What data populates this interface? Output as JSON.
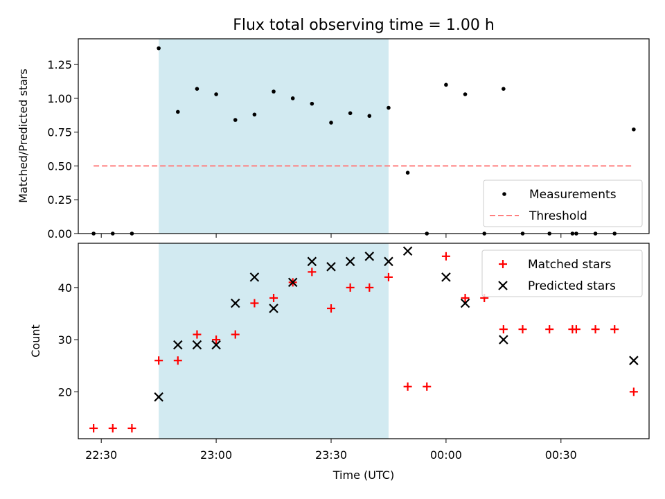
{
  "chart_data": {
    "type": "scatter",
    "title": "Flux total observing time = 1.00 h",
    "xlabel": "Time (UTC)",
    "x_axis_kind": "time",
    "x_range": [
      "22:24",
      "00:53"
    ],
    "x_ticks": [
      "22:30",
      "23:00",
      "23:30",
      "00:00",
      "00:30"
    ],
    "shaded_interval": {
      "start": "22:45",
      "end": "23:45",
      "color": "#add8e6"
    },
    "grid": false,
    "panels": [
      {
        "id": "ratio",
        "ylabel": "Matched/Predicted stars",
        "ylim": [
          0,
          1.44
        ],
        "y_ticks": [
          "0.00",
          "0.25",
          "0.50",
          "0.75",
          "1.00",
          "1.25"
        ],
        "legend_position": "lower right",
        "series": [
          {
            "name": "Measurements",
            "marker": "dot",
            "color": "#000000",
            "points": [
              {
                "x": "22:28",
                "y": 0
              },
              {
                "x": "22:33",
                "y": 0
              },
              {
                "x": "22:38",
                "y": 0
              },
              {
                "x": "22:45",
                "y": 1.37
              },
              {
                "x": "22:50",
                "y": 0.9
              },
              {
                "x": "22:55",
                "y": 1.07
              },
              {
                "x": "23:00",
                "y": 1.03
              },
              {
                "x": "23:05",
                "y": 0.84
              },
              {
                "x": "23:10",
                "y": 0.88
              },
              {
                "x": "23:15",
                "y": 1.05
              },
              {
                "x": "23:20",
                "y": 1.0
              },
              {
                "x": "23:25",
                "y": 0.96
              },
              {
                "x": "23:30",
                "y": 0.82
              },
              {
                "x": "23:35",
                "y": 0.89
              },
              {
                "x": "23:40",
                "y": 0.87
              },
              {
                "x": "23:45",
                "y": 0.93
              },
              {
                "x": "23:50",
                "y": 0.45
              },
              {
                "x": "23:55",
                "y": 0
              },
              {
                "x": "00:00",
                "y": 1.1
              },
              {
                "x": "00:05",
                "y": 1.03
              },
              {
                "x": "00:10",
                "y": 0
              },
              {
                "x": "00:15",
                "y": 1.07
              },
              {
                "x": "00:20",
                "y": 0
              },
              {
                "x": "00:27",
                "y": 0
              },
              {
                "x": "00:33",
                "y": 0
              },
              {
                "x": "00:34",
                "y": 0
              },
              {
                "x": "00:39",
                "y": 0
              },
              {
                "x": "00:44",
                "y": 0
              },
              {
                "x": "00:49",
                "y": 0.77
              }
            ]
          },
          {
            "name": "Threshold",
            "marker": "dashed-line",
            "color": "#ff7f7f",
            "points": [
              {
                "x": "22:28",
                "y": 0.5
              },
              {
                "x": "00:49",
                "y": 0.5
              }
            ]
          }
        ]
      },
      {
        "id": "counts",
        "ylabel": "Count",
        "ylim": [
          11,
          48.5
        ],
        "y_ticks": [
          "20",
          "30",
          "40"
        ],
        "legend_position": "upper right",
        "series": [
          {
            "name": "Matched stars",
            "marker": "plus",
            "color": "#ff0000",
            "points": [
              {
                "x": "22:28",
                "y": 13
              },
              {
                "x": "22:33",
                "y": 13
              },
              {
                "x": "22:38",
                "y": 13
              },
              {
                "x": "22:45",
                "y": 26
              },
              {
                "x": "22:50",
                "y": 26
              },
              {
                "x": "22:55",
                "y": 31
              },
              {
                "x": "23:00",
                "y": 30
              },
              {
                "x": "23:05",
                "y": 31
              },
              {
                "x": "23:10",
                "y": 37
              },
              {
                "x": "23:15",
                "y": 38
              },
              {
                "x": "23:20",
                "y": 41
              },
              {
                "x": "23:25",
                "y": 43
              },
              {
                "x": "23:30",
                "y": 36
              },
              {
                "x": "23:35",
                "y": 40
              },
              {
                "x": "23:40",
                "y": 40
              },
              {
                "x": "23:45",
                "y": 42
              },
              {
                "x": "23:50",
                "y": 21
              },
              {
                "x": "23:55",
                "y": 21
              },
              {
                "x": "00:00",
                "y": 46
              },
              {
                "x": "00:05",
                "y": 38
              },
              {
                "x": "00:10",
                "y": 38
              },
              {
                "x": "00:15",
                "y": 32
              },
              {
                "x": "00:20",
                "y": 32
              },
              {
                "x": "00:27",
                "y": 32
              },
              {
                "x": "00:33",
                "y": 32
              },
              {
                "x": "00:34",
                "y": 32
              },
              {
                "x": "00:39",
                "y": 32
              },
              {
                "x": "00:44",
                "y": 32
              },
              {
                "x": "00:49",
                "y": 20
              }
            ]
          },
          {
            "name": "Predicted stars",
            "marker": "x",
            "color": "#000000",
            "points": [
              {
                "x": "22:45",
                "y": 19
              },
              {
                "x": "22:50",
                "y": 29
              },
              {
                "x": "22:55",
                "y": 29
              },
              {
                "x": "23:00",
                "y": 29
              },
              {
                "x": "23:05",
                "y": 37
              },
              {
                "x": "23:10",
                "y": 42
              },
              {
                "x": "23:15",
                "y": 36
              },
              {
                "x": "23:20",
                "y": 41
              },
              {
                "x": "23:25",
                "y": 45
              },
              {
                "x": "23:30",
                "y": 44
              },
              {
                "x": "23:35",
                "y": 45
              },
              {
                "x": "23:40",
                "y": 46
              },
              {
                "x": "23:45",
                "y": 45
              },
              {
                "x": "23:50",
                "y": 47
              },
              {
                "x": "00:00",
                "y": 42
              },
              {
                "x": "00:05",
                "y": 37
              },
              {
                "x": "00:15",
                "y": 30
              },
              {
                "x": "00:49",
                "y": 26
              }
            ]
          }
        ]
      }
    ]
  }
}
